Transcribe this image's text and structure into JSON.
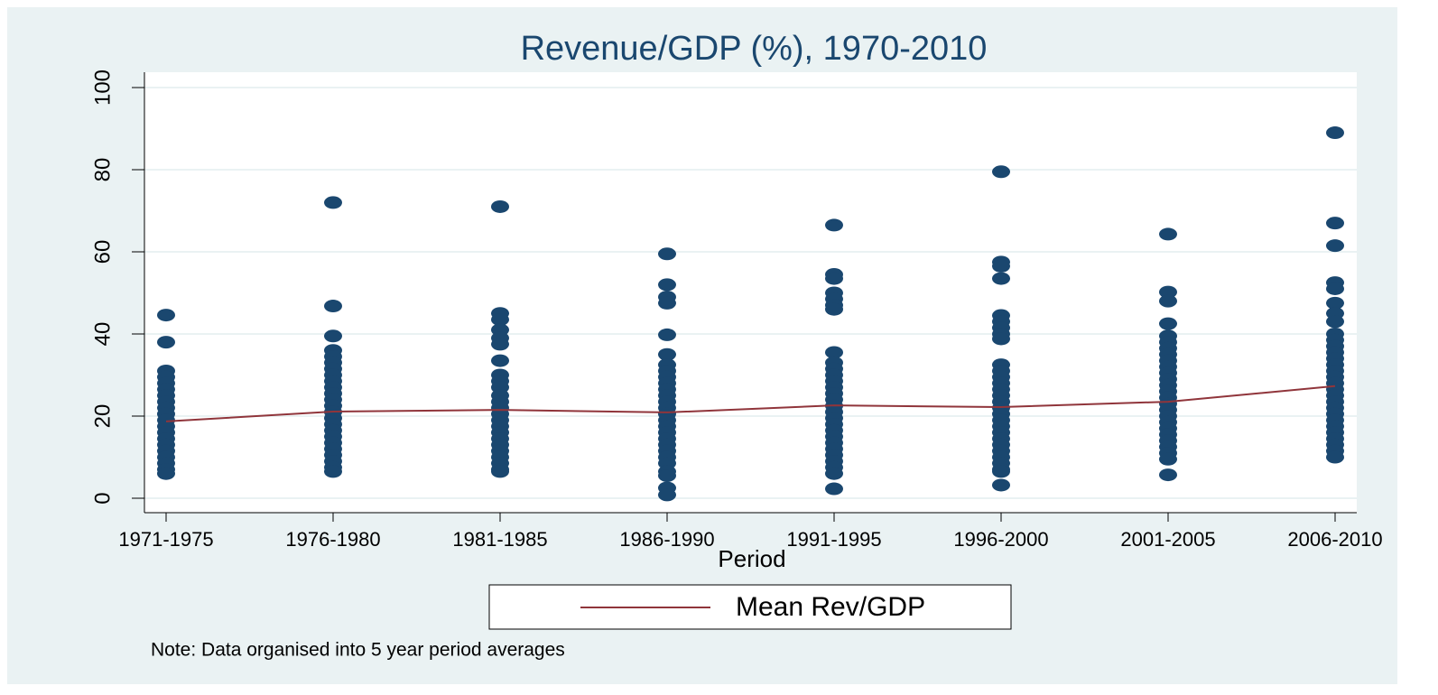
{
  "chart_data": {
    "type": "scatter",
    "title": "Revenue/GDP (%), 1970-2010",
    "x_label": "Period",
    "note": "Note: Data organised into 5 year period averages",
    "categories": [
      "1971-1975",
      "1976-1980",
      "1981-1985",
      "1986-1990",
      "1991-1995",
      "1996-2000",
      "2001-2005",
      "2006-2010"
    ],
    "ylim": [
      0,
      100
    ],
    "yticks": [
      0,
      20,
      40,
      60,
      80,
      100
    ],
    "grid": true,
    "legend": "bottom",
    "series": [
      {
        "type": "scatter",
        "color": "#1a476f",
        "values": [
          [
            44.6,
            38,
            31,
            29.5,
            28,
            26.5,
            25,
            23.5,
            22,
            20.5,
            19,
            17.5,
            16,
            14.5,
            13,
            11.5,
            10,
            8.5,
            7,
            6
          ],
          [
            72,
            46.8,
            39.5,
            36,
            34.5,
            33,
            31.5,
            30,
            28.5,
            27,
            25.5,
            24,
            22.5,
            21,
            19.5,
            18,
            16.5,
            15,
            13.5,
            12,
            10.5,
            9,
            7.5,
            6.5
          ],
          [
            71,
            45,
            43.5,
            41,
            39,
            37.5,
            33.5,
            30,
            28.5,
            27,
            25,
            23.5,
            22,
            20.5,
            19,
            17.5,
            16,
            14.5,
            13,
            11.5,
            10,
            8.5,
            7,
            6.5
          ],
          [
            59.5,
            52,
            49,
            47.5,
            39.8,
            35,
            32.5,
            31,
            29.5,
            28,
            26.5,
            25,
            23.5,
            22,
            20.5,
            19,
            17.5,
            16,
            14.5,
            13,
            11.5,
            10,
            8.5,
            6.5,
            5.5,
            2.5,
            0.8
          ],
          [
            66.5,
            54.5,
            53.5,
            50,
            48.5,
            47,
            46,
            35.5,
            33,
            31.5,
            30,
            28.5,
            27,
            25.5,
            24,
            22.5,
            21,
            19.5,
            18,
            16.5,
            15,
            13.5,
            12,
            10.5,
            9,
            7.5,
            6,
            2.3
          ],
          [
            79.5,
            57.5,
            56.5,
            53.5,
            44.5,
            43,
            41.5,
            40,
            38.8,
            32.5,
            31,
            29.5,
            28,
            26.5,
            25,
            23.5,
            22,
            20.5,
            19,
            17.5,
            16,
            14.5,
            13,
            11.5,
            10,
            8.5,
            7,
            6.5,
            3.2
          ],
          [
            64.3,
            50.2,
            48,
            42.5,
            39.5,
            38,
            36.5,
            35,
            33.5,
            32,
            30.5,
            29,
            27.5,
            26,
            24.5,
            23,
            21.5,
            20,
            18.5,
            17,
            15.5,
            14,
            12.5,
            11,
            9.5,
            5.7
          ],
          [
            89,
            67,
            61.5,
            52.5,
            51,
            47.5,
            45,
            43,
            40,
            38.5,
            37,
            35.5,
            34,
            32.5,
            31,
            29.5,
            28,
            26.5,
            25,
            23.5,
            22,
            20.5,
            19,
            17.5,
            16,
            14.5,
            13,
            11.5,
            10
          ]
        ]
      },
      {
        "type": "line",
        "name": "Mean Rev/GDP",
        "color": "#90353b",
        "values": [
          18.7,
          21.1,
          21.5,
          20.9,
          22.6,
          22.2,
          23.5,
          27.3
        ]
      }
    ]
  }
}
